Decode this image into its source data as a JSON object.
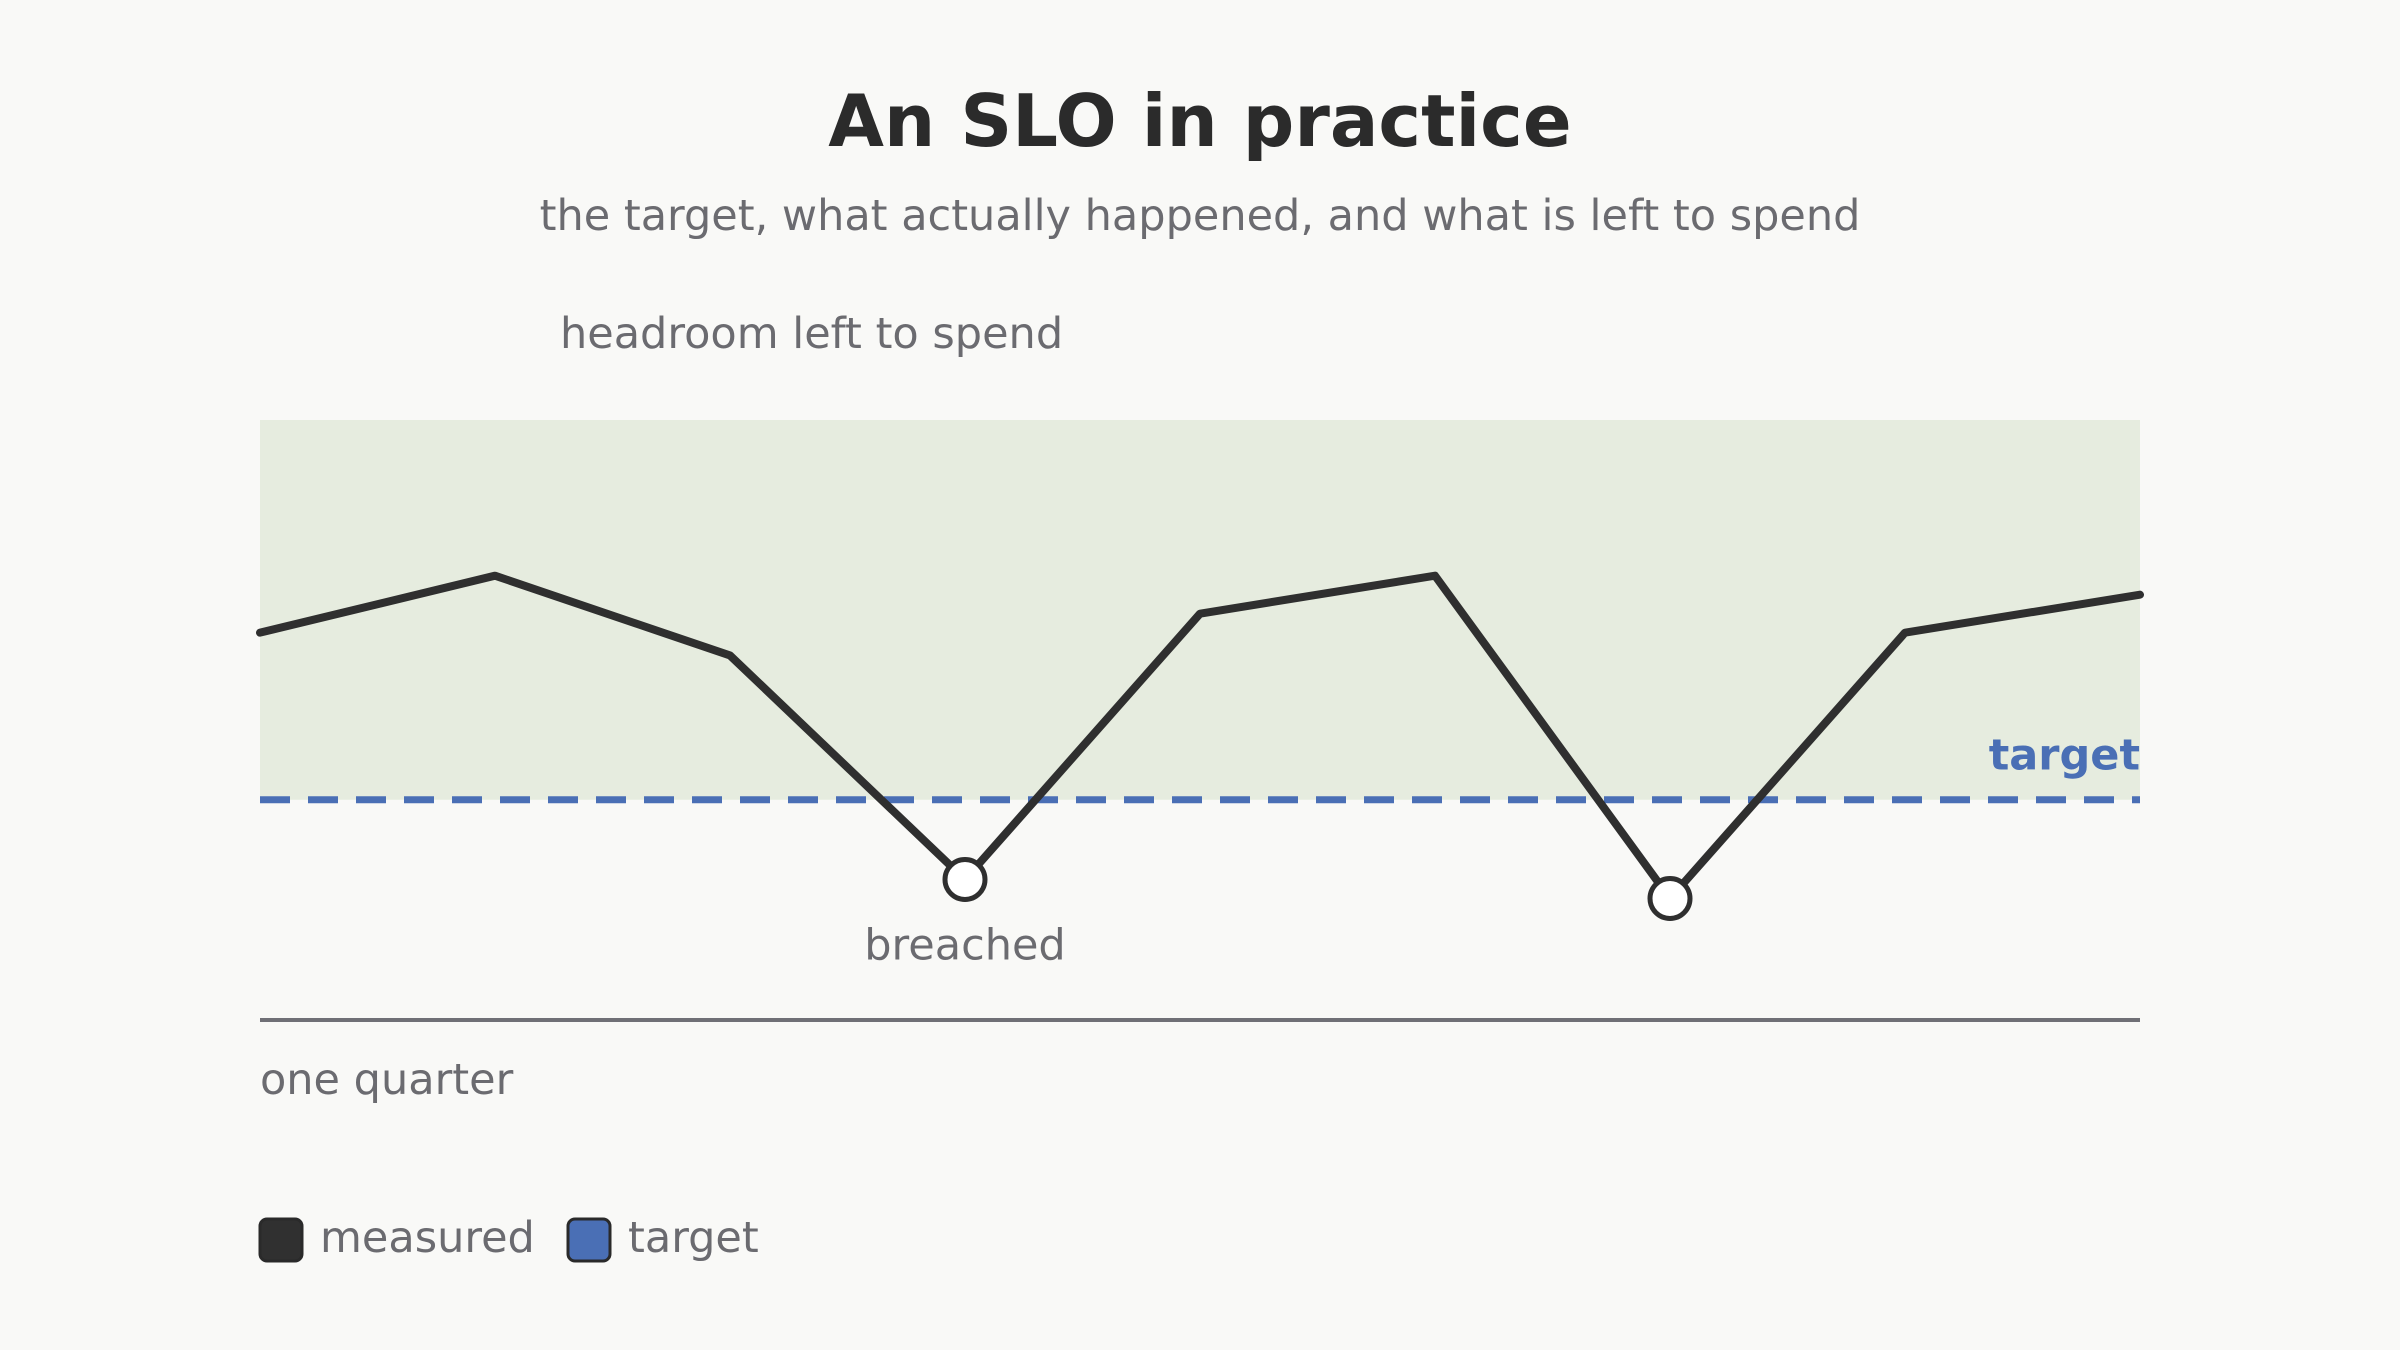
{
  "chart_data": {
    "type": "line",
    "title": "An SLO in practice",
    "subtitle": "the target, what actually happened, and what is left to spend",
    "xlabel": "one quarter",
    "ylabel": "",
    "x": [
      0,
      1,
      2,
      3,
      4,
      5,
      6,
      7,
      8
    ],
    "series": [
      {
        "name": "measured",
        "values": [
          0.44,
          0.59,
          0.38,
          -0.21,
          0.49,
          0.59,
          -0.26,
          0.44,
          0.54
        ]
      }
    ],
    "target": {
      "name": "target",
      "value": 0
    },
    "ylim": [
      -0.58,
      1.0
    ],
    "breaches": [
      3,
      6
    ],
    "annotations": {
      "headroom": "headroom left to spend",
      "breached": "breached",
      "target": "target"
    },
    "legend": [
      {
        "label": "measured",
        "color": "#303030"
      },
      {
        "label": "target",
        "color": "#4a6fb5"
      }
    ],
    "legend_position": "bottom-left",
    "grid": false,
    "colors": {
      "measured": "#2f2f2f",
      "target": "#4a6fb5",
      "headroom_fill": "#e6ecdf",
      "axis": "#707076",
      "text": "#6b6b70",
      "background": "#f9f9f7"
    }
  }
}
